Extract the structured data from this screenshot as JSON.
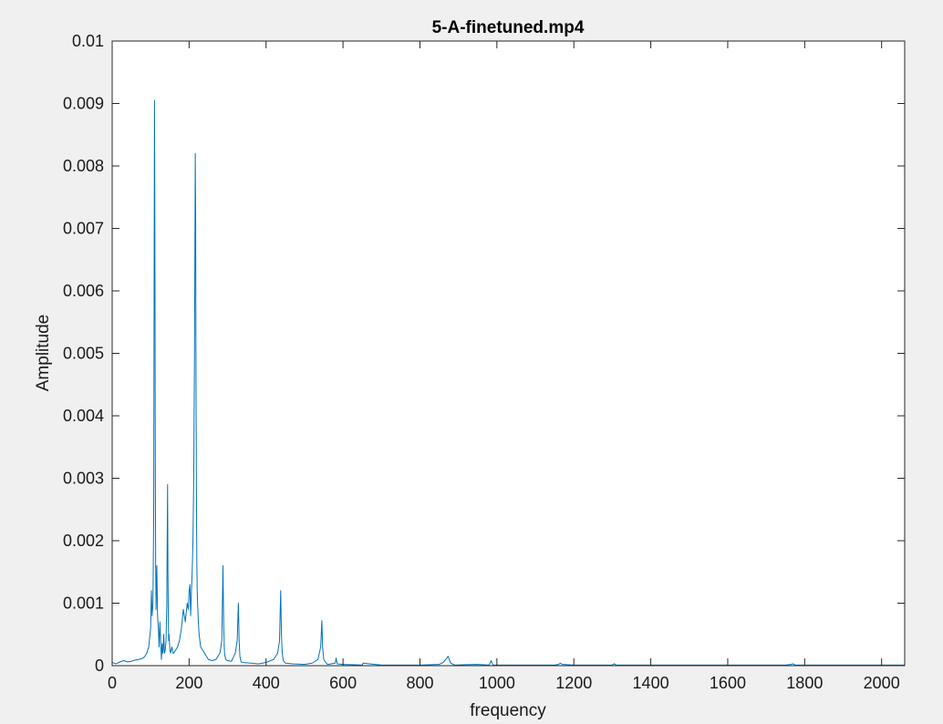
{
  "chart_data": {
    "type": "line",
    "title": "5-A-finetuned.mp4",
    "xlabel": "frequency",
    "ylabel": "Amplitude",
    "xlim": [
      0,
      2060
    ],
    "ylim": [
      0,
      0.01
    ],
    "x_ticks": [
      0,
      200,
      400,
      600,
      800,
      1000,
      1200,
      1400,
      1600,
      1800,
      2000
    ],
    "y_ticks": [
      0,
      0.001,
      0.002,
      0.003,
      0.004,
      0.005,
      0.006,
      0.007,
      0.008,
      0.009,
      0.01
    ],
    "x_tick_labels": [
      "0",
      "200",
      "400",
      "600",
      "800",
      "1000",
      "1200",
      "1400",
      "1600",
      "1800",
      "2000"
    ],
    "y_tick_labels": [
      "0",
      "0.001",
      "0.002",
      "0.003",
      "0.004",
      "0.005",
      "0.006",
      "0.007",
      "0.008",
      "0.009",
      "0.01"
    ],
    "grid": false,
    "line_color": "#0072bd",
    "series": [
      {
        "x": [
          0,
          10,
          20,
          30,
          40,
          50,
          60,
          70,
          80,
          85,
          90,
          95,
          100,
          102,
          104,
          106,
          108,
          109,
          110,
          111,
          112,
          113,
          114,
          116,
          118,
          120,
          122,
          124,
          126,
          128,
          130,
          132,
          134,
          136,
          138,
          140,
          142,
          144,
          145,
          146,
          147,
          148,
          150,
          152,
          155,
          158,
          160,
          165,
          170,
          175,
          180,
          185,
          190,
          195,
          198,
          200,
          202,
          204,
          206,
          208,
          210,
          212,
          214,
          216,
          217,
          218,
          219,
          220,
          221,
          222,
          224,
          226,
          228,
          230,
          235,
          240,
          245,
          250,
          260,
          270,
          280,
          285,
          288,
          290,
          292,
          295,
          300,
          310,
          320,
          325,
          328,
          330,
          332,
          335,
          340,
          360,
          380,
          400,
          420,
          430,
          435,
          438,
          440,
          442,
          445,
          450,
          470,
          500,
          520,
          535,
          542,
          545,
          547,
          550,
          555,
          560,
          580,
          582,
          585,
          600,
          650,
          652,
          700,
          750,
          800,
          850,
          860,
          870,
          873,
          876,
          880,
          890,
          950,
          980,
          985,
          990,
          1050,
          1100,
          1150,
          1160,
          1165,
          1170,
          1200,
          1250,
          1300,
          1305,
          1310,
          1350,
          1400,
          1450,
          1500,
          1550,
          1600,
          1650,
          1700,
          1750,
          1765,
          1770,
          1775,
          1800,
          1850,
          1900,
          1950,
          2000,
          2060
        ],
        "y": [
          5e-05,
          3e-05,
          6e-05,
          8e-05,
          6e-05,
          7e-05,
          9e-05,
          0.0001,
          0.00012,
          0.00015,
          0.0002,
          0.0003,
          0.0006,
          0.0012,
          0.0008,
          0.001,
          0.0025,
          0.006,
          0.00905,
          0.007,
          0.0035,
          0.0016,
          0.0009,
          0.0016,
          0.0008,
          0.0006,
          0.0003,
          0.0007,
          0.0004,
          0.0001,
          0.00035,
          0.0002,
          0.0005,
          0.0002,
          0.00025,
          0.0004,
          0.001,
          0.0029,
          0.0015,
          0.0007,
          0.0004,
          0.0005,
          0.00025,
          0.0002,
          0.0003,
          0.0002,
          0.0002,
          0.00025,
          0.0003,
          0.0004,
          0.0006,
          0.0009,
          0.0007,
          0.001,
          0.0009,
          0.0012,
          0.0013,
          0.0008,
          0.0012,
          0.0015,
          0.002,
          0.003,
          0.005,
          0.0082,
          0.0071,
          0.0045,
          0.0028,
          0.0017,
          0.0012,
          0.001,
          0.0007,
          0.0005,
          0.0004,
          0.0003,
          0.00025,
          0.0002,
          0.00015,
          0.0001,
          8e-05,
          0.0001,
          0.0002,
          0.0004,
          0.0016,
          0.0006,
          0.0002,
          0.0001,
          8e-05,
          7e-05,
          0.0002,
          0.0004,
          0.001,
          0.0004,
          0.00015,
          6e-05,
          5e-05,
          4e-05,
          3e-05,
          5e-05,
          0.0001,
          0.0002,
          0.0004,
          0.0012,
          0.0005,
          0.0002,
          8e-05,
          4e-05,
          3e-05,
          2e-05,
          4e-05,
          0.0001,
          0.0003,
          0.00072,
          0.0003,
          0.0001,
          5e-05,
          2e-05,
          4e-05,
          0.00012,
          3e-05,
          2e-05,
          1e-05,
          4e-05,
          1e-05,
          1e-05,
          1e-05,
          2e-05,
          5e-05,
          0.00012,
          0.00015,
          0.0001,
          4e-05,
          1e-05,
          2e-05,
          1e-05,
          8e-05,
          1e-05,
          1e-05,
          1e-05,
          1e-05,
          2e-05,
          4e-05,
          2e-05,
          1e-05,
          1e-05,
          1e-05,
          3e-05,
          1e-05,
          1e-05,
          1e-05,
          1e-05,
          1e-05,
          1e-05,
          1e-05,
          1e-05,
          1e-05,
          1e-05,
          2e-05,
          3e-05,
          1e-05,
          1e-05,
          1e-05,
          1e-05,
          1e-05,
          1e-05,
          1e-05
        ]
      }
    ]
  }
}
